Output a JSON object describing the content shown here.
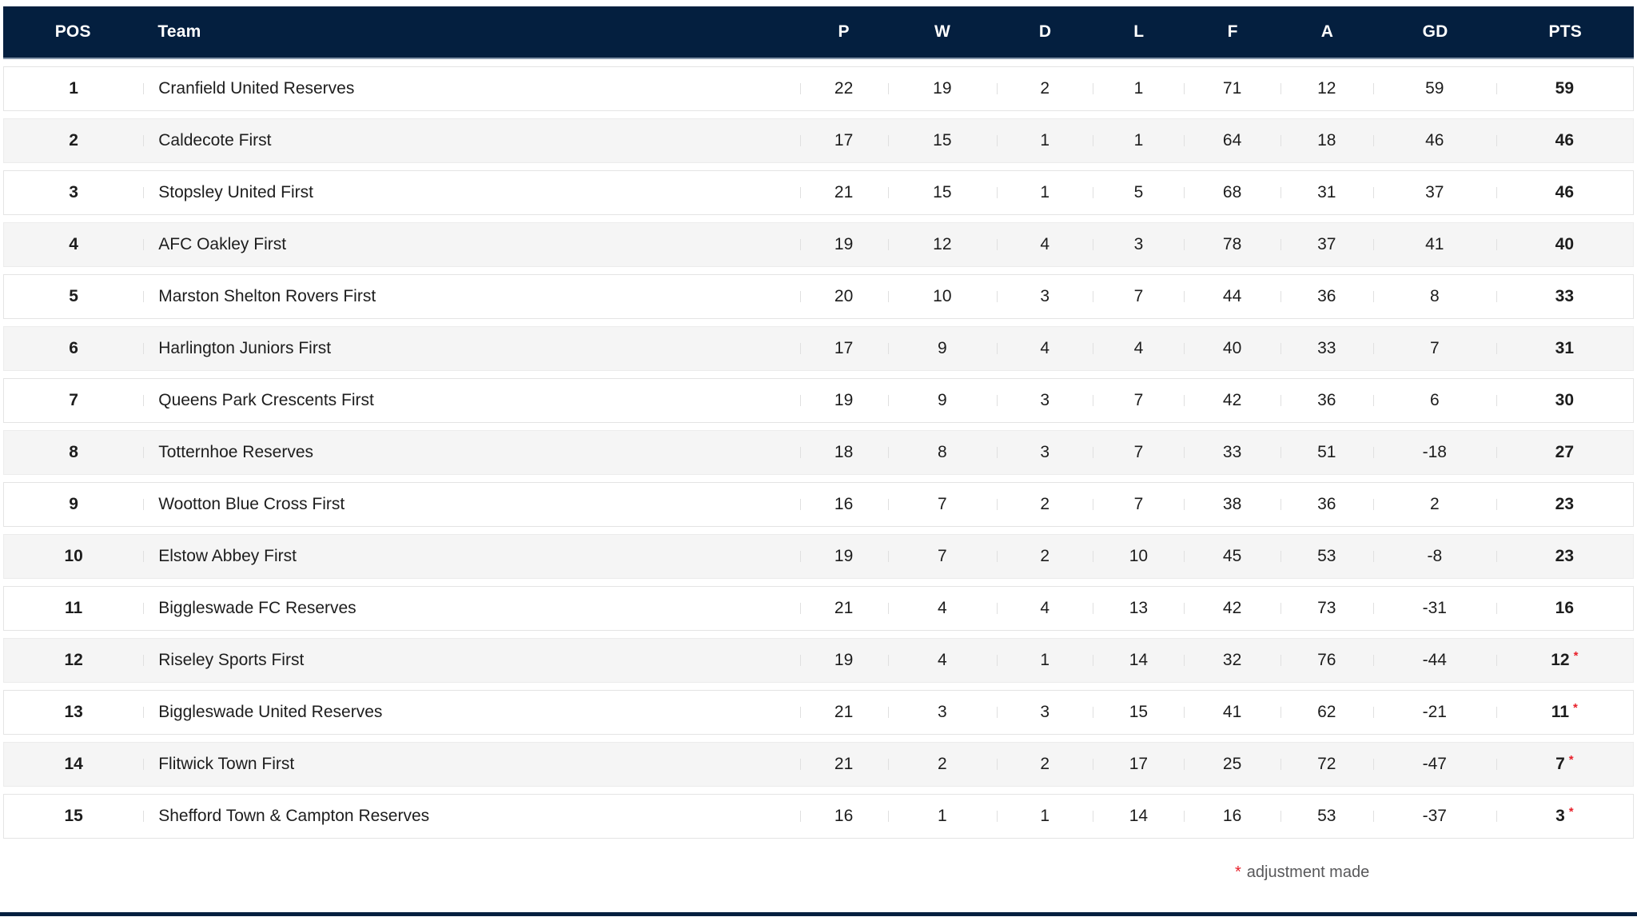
{
  "table": {
    "columns": [
      {
        "key": "pos",
        "label": "POS"
      },
      {
        "key": "team",
        "label": "Team"
      },
      {
        "key": "p",
        "label": "P"
      },
      {
        "key": "w",
        "label": "W"
      },
      {
        "key": "d",
        "label": "D"
      },
      {
        "key": "l",
        "label": "L"
      },
      {
        "key": "f",
        "label": "F"
      },
      {
        "key": "a",
        "label": "A"
      },
      {
        "key": "gd",
        "label": "GD"
      },
      {
        "key": "pts",
        "label": "PTS"
      }
    ],
    "rows": [
      {
        "pos": "1",
        "team": "Cranfield United Reserves",
        "p": "22",
        "w": "19",
        "d": "2",
        "l": "1",
        "f": "71",
        "a": "12",
        "gd": "59",
        "pts": "59",
        "adjusted": false
      },
      {
        "pos": "2",
        "team": "Caldecote First",
        "p": "17",
        "w": "15",
        "d": "1",
        "l": "1",
        "f": "64",
        "a": "18",
        "gd": "46",
        "pts": "46",
        "adjusted": false
      },
      {
        "pos": "3",
        "team": "Stopsley United First",
        "p": "21",
        "w": "15",
        "d": "1",
        "l": "5",
        "f": "68",
        "a": "31",
        "gd": "37",
        "pts": "46",
        "adjusted": false
      },
      {
        "pos": "4",
        "team": "AFC Oakley First",
        "p": "19",
        "w": "12",
        "d": "4",
        "l": "3",
        "f": "78",
        "a": "37",
        "gd": "41",
        "pts": "40",
        "adjusted": false
      },
      {
        "pos": "5",
        "team": "Marston Shelton Rovers First",
        "p": "20",
        "w": "10",
        "d": "3",
        "l": "7",
        "f": "44",
        "a": "36",
        "gd": "8",
        "pts": "33",
        "adjusted": false
      },
      {
        "pos": "6",
        "team": "Harlington Juniors First",
        "p": "17",
        "w": "9",
        "d": "4",
        "l": "4",
        "f": "40",
        "a": "33",
        "gd": "7",
        "pts": "31",
        "adjusted": false
      },
      {
        "pos": "7",
        "team": "Queens Park Crescents First",
        "p": "19",
        "w": "9",
        "d": "3",
        "l": "7",
        "f": "42",
        "a": "36",
        "gd": "6",
        "pts": "30",
        "adjusted": false
      },
      {
        "pos": "8",
        "team": "Totternhoe Reserves",
        "p": "18",
        "w": "8",
        "d": "3",
        "l": "7",
        "f": "33",
        "a": "51",
        "gd": "-18",
        "pts": "27",
        "adjusted": false
      },
      {
        "pos": "9",
        "team": "Wootton Blue Cross First",
        "p": "16",
        "w": "7",
        "d": "2",
        "l": "7",
        "f": "38",
        "a": "36",
        "gd": "2",
        "pts": "23",
        "adjusted": false
      },
      {
        "pos": "10",
        "team": "Elstow Abbey First",
        "p": "19",
        "w": "7",
        "d": "2",
        "l": "10",
        "f": "45",
        "a": "53",
        "gd": "-8",
        "pts": "23",
        "adjusted": false
      },
      {
        "pos": "11",
        "team": "Biggleswade FC Reserves",
        "p": "21",
        "w": "4",
        "d": "4",
        "l": "13",
        "f": "42",
        "a": "73",
        "gd": "-31",
        "pts": "16",
        "adjusted": false
      },
      {
        "pos": "12",
        "team": "Riseley Sports First",
        "p": "19",
        "w": "4",
        "d": "1",
        "l": "14",
        "f": "32",
        "a": "76",
        "gd": "-44",
        "pts": "12",
        "adjusted": true
      },
      {
        "pos": "13",
        "team": "Biggleswade United Reserves",
        "p": "21",
        "w": "3",
        "d": "3",
        "l": "15",
        "f": "41",
        "a": "62",
        "gd": "-21",
        "pts": "11",
        "adjusted": true
      },
      {
        "pos": "14",
        "team": "Flitwick Town First",
        "p": "21",
        "w": "2",
        "d": "2",
        "l": "17",
        "f": "25",
        "a": "72",
        "gd": "-47",
        "pts": "7",
        "adjusted": true
      },
      {
        "pos": "15",
        "team": "Shefford Town & Campton Reserves",
        "p": "16",
        "w": "1",
        "d": "1",
        "l": "14",
        "f": "16",
        "a": "53",
        "gd": "-37",
        "pts": "3",
        "adjusted": true
      }
    ]
  },
  "footnote": {
    "marker": "*",
    "text": "adjustment made"
  },
  "colors": {
    "header_bg": "#041f3f",
    "header_text": "#ffffff",
    "header_underline": "#8596aa",
    "row_alt_bg": "#f5f5f5",
    "row_border": "#e4e4e4",
    "body_text": "#1d1d1d",
    "adjustment_red": "#e8212b",
    "footnote_text": "#58585a",
    "bottom_bar": "#041f3f"
  }
}
